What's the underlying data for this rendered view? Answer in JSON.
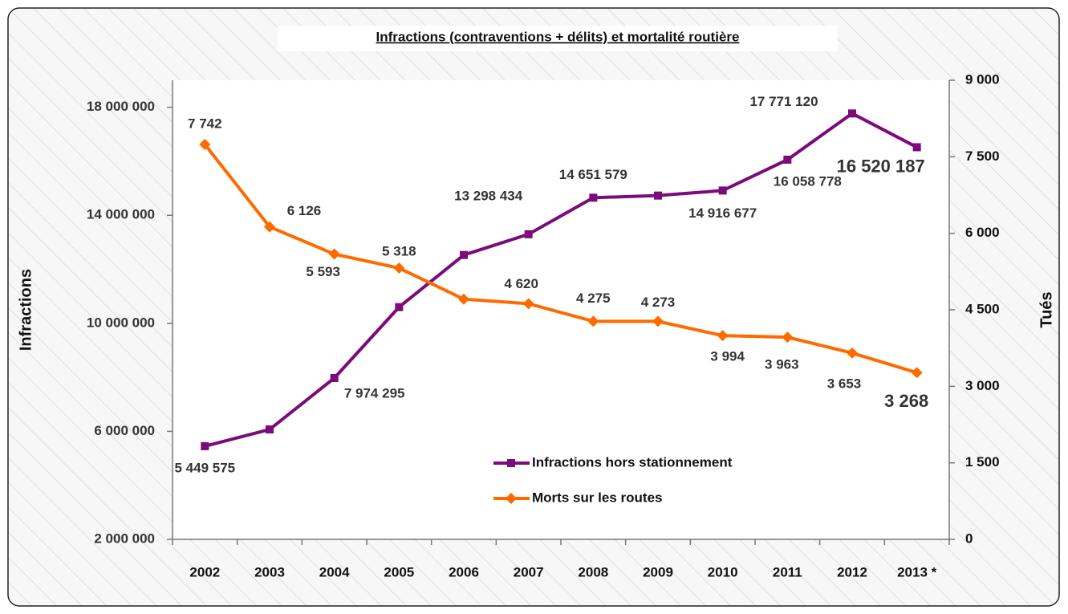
{
  "chart_data": {
    "type": "line",
    "title": "Infractions (contraventions + délits) et mortalité routière",
    "y_label": "Infractions",
    "y2_label": "Tués",
    "categories": [
      "2002",
      "2003",
      "2004",
      "2005",
      "2006",
      "2007",
      "2008",
      "2009",
      "2010",
      "2011",
      "2012",
      "2013 *"
    ],
    "ylim": [
      2000000,
      19000000
    ],
    "yticks": [
      {
        "value": 2000000,
        "label": "2 000 000"
      },
      {
        "value": 6000000,
        "label": "6 000 000"
      },
      {
        "value": 10000000,
        "label": "10 000 000"
      },
      {
        "value": 14000000,
        "label": "14 000 000"
      },
      {
        "value": 18000000,
        "label": "18 000 000"
      }
    ],
    "y2lim": [
      0,
      9000
    ],
    "y2ticks": [
      0,
      {
        "value": 1500,
        "label": "1 500"
      },
      {
        "value": 3000,
        "label": "3 000"
      },
      {
        "value": 4500,
        "label": "4 500"
      },
      {
        "value": 6000,
        "label": "6 000"
      },
      {
        "value": 7500,
        "label": "7 500"
      },
      {
        "value": 9000,
        "label": "9 000"
      }
    ],
    "series": [
      {
        "name": "Infractions hors stationnement",
        "color": "#7b0a7b",
        "marker": "square",
        "values": [
          5449575,
          6070000,
          7974295,
          10600000,
          12530000,
          13298434,
          14651579,
          14730000,
          14916677,
          16058778,
          17771120,
          16520187
        ],
        "value_labels": [
          "5 449 575",
          null,
          "7 974 295",
          null,
          null,
          "13 298 434",
          "14 651 579",
          null,
          "14 916 677",
          "16 058 778",
          "17 771 120",
          "16 520 187"
        ]
      },
      {
        "name": "Morts sur les routes",
        "color": "#ff6a00",
        "marker": "diamond",
        "axis": "y2",
        "values": [
          7742,
          6126,
          5593,
          5318,
          4709,
          4620,
          4275,
          4273,
          3994,
          3963,
          3653,
          3268
        ],
        "value_labels": [
          "7 742",
          "6 126",
          "5 593",
          "5 318",
          null,
          "4 620",
          "4 275",
          "4 273",
          "3 994",
          "3 963",
          "3 653",
          "3 268"
        ]
      }
    ]
  }
}
